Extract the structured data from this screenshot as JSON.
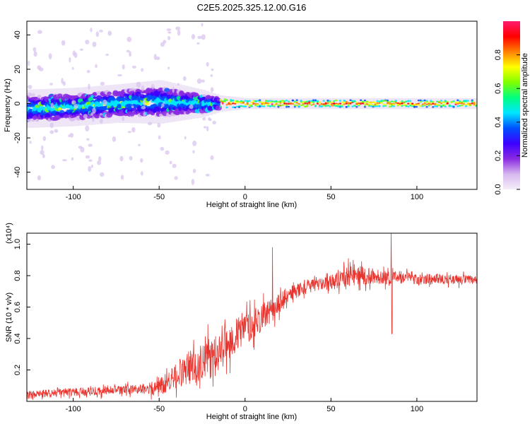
{
  "title": "C2E5.2025.325.12.00.G16",
  "chart_data": [
    {
      "type": "heatmap",
      "title": "C2E5.2025.325.12.00.G16",
      "xlabel": "Height of straight line (km)",
      "ylabel": "Frequency (Hz)",
      "xlim": [
        -127,
        135
      ],
      "ylim": [
        -50,
        48
      ],
      "xticks": [
        -100,
        -50,
        0,
        50,
        100
      ],
      "xtick_labels": [
        "-100",
        "-50",
        "0",
        "50",
        "100"
      ],
      "yticks": [
        -40,
        -20,
        0,
        20,
        40
      ],
      "ytick_labels": [
        "-40",
        "-20",
        "0",
        "20",
        "40"
      ],
      "colorbar": {
        "label": "Normalized spectral amplitude",
        "range": [
          0,
          1
        ],
        "ticks": [
          0.0,
          0.2,
          0.4,
          0.6,
          0.8
        ],
        "tick_labels": [
          "0.0",
          "0.2",
          "0.4",
          "0.6",
          "0.8"
        ],
        "colors": [
          "#f4eef8",
          "#d7b8ef",
          "#8a2be2",
          "#3c00ff",
          "#0050ff",
          "#00e5ff",
          "#00ff7f",
          "#7fff00",
          "#ffff00",
          "#ff8000",
          "#ff0000",
          "#ff1a6e"
        ]
      },
      "ridge": {
        "description_points_x": [
          -127,
          -100,
          -75,
          -50,
          -25,
          -15,
          0,
          15,
          50,
          100,
          135
        ],
        "center_freq": [
          -3,
          -2,
          0,
          1,
          0,
          0,
          0,
          0,
          0,
          0,
          0
        ],
        "half_width": [
          7,
          7,
          7,
          8,
          5,
          3,
          2,
          2,
          2,
          2,
          2
        ]
      }
    },
    {
      "type": "line",
      "xlabel": "Height of straight line (km)",
      "ylabel": "SNR (10 * v/v)",
      "y_scale_label": "(x10⁴)",
      "xlim": [
        -127,
        135
      ],
      "ylim": [
        0.0,
        1.07
      ],
      "xticks": [
        -100,
        -50,
        0,
        50,
        100
      ],
      "xtick_labels": [
        "-100",
        "-50",
        "0",
        "50",
        "100"
      ],
      "yticks": [
        0.2,
        0.4,
        0.6,
        0.8,
        1.0
      ],
      "ytick_labels": [
        "0.2",
        "0.4",
        "0.6",
        "0.8",
        "1.0"
      ],
      "series": [
        {
          "name": "SNR",
          "color": "#e8342e",
          "trend_x": [
            -127,
            -100,
            -75,
            -55,
            -45,
            -35,
            -25,
            -15,
            -5,
            5,
            15,
            25,
            35,
            50,
            60,
            70,
            80,
            90,
            100,
            115,
            135
          ],
          "trend_y": [
            0.04,
            0.06,
            0.07,
            0.08,
            0.12,
            0.2,
            0.26,
            0.32,
            0.42,
            0.5,
            0.57,
            0.68,
            0.73,
            0.76,
            0.8,
            0.8,
            0.79,
            0.79,
            0.78,
            0.78,
            0.77
          ],
          "noise": [
            [
              -127,
              0.025
            ],
            [
              -60,
              0.03
            ],
            [
              -45,
              0.07
            ],
            [
              -30,
              0.12
            ],
            [
              -10,
              0.12
            ],
            [
              10,
              0.09
            ],
            [
              25,
              0.05
            ],
            [
              45,
              0.04
            ],
            [
              60,
              0.07
            ],
            [
              75,
              0.05
            ],
            [
              100,
              0.035
            ],
            [
              135,
              0.03
            ]
          ],
          "spikes": [
            {
              "x": 85,
              "y": 1.07
            },
            {
              "x": 85.5,
              "y": 0.43
            },
            {
              "x": 16,
              "y": 0.98
            },
            {
              "x": 63,
              "y": 0.9
            }
          ]
        }
      ]
    }
  ]
}
